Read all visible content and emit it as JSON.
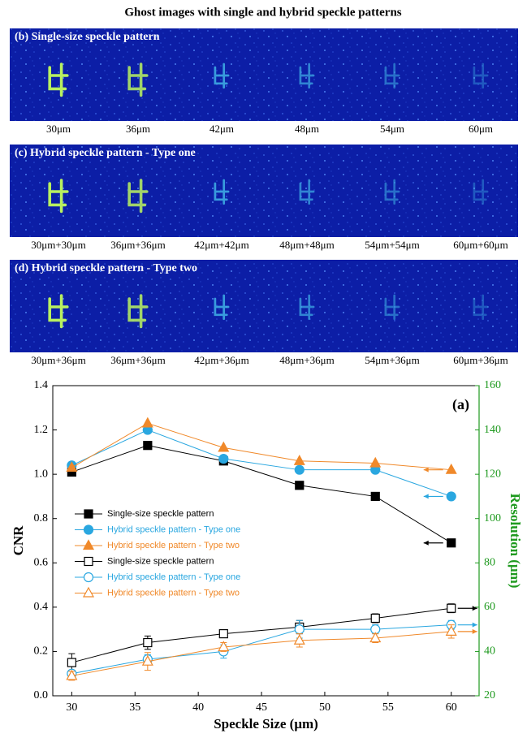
{
  "title": "Ghost images with single and hybrid speckle patterns",
  "panels": [
    {
      "label": "(b) Single-size speckle pattern",
      "captions": [
        "30μm",
        "36μm",
        "42μm",
        "48μm",
        "54μm",
        "60μm"
      ]
    },
    {
      "label": "(c) Hybrid speckle pattern - Type one",
      "captions": [
        "30μm+30μm",
        "36μm+36μm",
        "42μm+42μm",
        "48μm+48μm",
        "54μm+54μm",
        "60μm+60μm"
      ]
    },
    {
      "label": "(d) Hybrid speckle pattern - Type two",
      "captions": [
        "30μm+36μm",
        "36μm+36μm",
        "42μm+36μm",
        "48μm+36μm",
        "54μm+36μm",
        "60μm+36μm"
      ]
    }
  ],
  "chart_data": {
    "type": "line",
    "annotation": "(a)",
    "x_label": "Speckle Size (μm)",
    "y_label": "CNR",
    "y2_label": "Resolution (μm)",
    "y2_color": "#1f9a1f",
    "x": [
      30,
      36,
      42,
      48,
      54,
      60
    ],
    "xlim": [
      28.5,
      62.2
    ],
    "xticks": [
      30,
      35,
      40,
      45,
      50,
      55,
      60
    ],
    "ylim": [
      0,
      1.4
    ],
    "yticks": [
      {
        "value": 0,
        "label": "0.0"
      },
      0.2,
      0.4,
      0.6,
      0.8,
      {
        "value": 1,
        "label": "1.0"
      },
      1.2,
      1.4
    ],
    "y2lim": [
      20,
      160
    ],
    "y2ticks": [
      20,
      40,
      60,
      80,
      100,
      120,
      140,
      160
    ],
    "grid": false,
    "legend": "left",
    "series": [
      {
        "name": "Single-size speckle pattern",
        "color": "#000000",
        "marker": "square",
        "filled": true,
        "values": [
          1.01,
          1.13,
          1.06,
          0.95,
          0.9,
          0.69
        ]
      },
      {
        "name": "Hybrid speckle pattern - Type one",
        "color": "#2aa7e0",
        "marker": "circle",
        "filled": true,
        "values": [
          1.04,
          1.2,
          1.07,
          1.02,
          1.02,
          0.9
        ]
      },
      {
        "name": "Hybrid speckle pattern - Type two",
        "color": "#f0892a",
        "marker": "triangle",
        "filled": true,
        "values": [
          1.03,
          1.23,
          1.12,
          1.06,
          1.05,
          1.02
        ]
      },
      {
        "name": "Single-size speckle pattern",
        "color": "#000000",
        "marker": "square",
        "filled": false,
        "axis": "y2",
        "values": [
          35,
          44,
          48,
          51,
          55,
          59.5
        ],
        "errors": [
          4,
          3,
          1.5,
          3,
          2,
          2
        ]
      },
      {
        "name": "Hybrid speckle pattern - Type one",
        "color": "#2aa7e0",
        "marker": "circle",
        "filled": false,
        "axis": "y2",
        "values": [
          30,
          36.5,
          40,
          50,
          50,
          52
        ],
        "errors": [
          1.5,
          2,
          3,
          4,
          2,
          2
        ]
      },
      {
        "name": "Hybrid speckle pattern - Type two",
        "color": "#f0892a",
        "marker": "triangle",
        "filled": false,
        "axis": "y2",
        "values": [
          29,
          35.5,
          42,
          45,
          46,
          49
        ],
        "errors": [
          2,
          4,
          2,
          3,
          2,
          3
        ]
      }
    ]
  }
}
